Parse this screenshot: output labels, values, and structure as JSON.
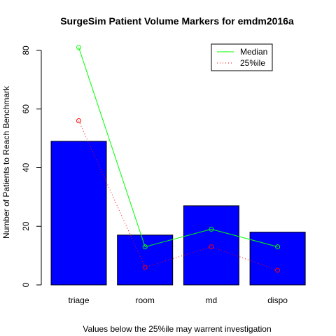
{
  "chart_data": {
    "type": "bar",
    "title": "SurgeSim Patient Volume Markers for emdm2016a",
    "xlabel": "Values below the 25%ile may warrent investigation",
    "ylabel": "Number of Patients to Reach Benchmark",
    "categories": [
      "triage",
      "room",
      "md",
      "dispo"
    ],
    "bars": {
      "values": [
        49,
        17,
        27,
        18
      ],
      "color": "#0000FF"
    },
    "series": [
      {
        "name": "Median",
        "values": [
          81,
          13,
          19,
          13
        ],
        "color": "#00FF00",
        "style": "solid",
        "marker": "open-circle"
      },
      {
        "name": "25%ile",
        "values": [
          56,
          6,
          13,
          5
        ],
        "color": "#FF0000",
        "style": "dotted",
        "marker": "open-circle"
      }
    ],
    "yticks": [
      0,
      20,
      40,
      60,
      80
    ],
    "ylim": [
      0,
      85
    ],
    "grid": false,
    "legend_position": "top-right"
  }
}
